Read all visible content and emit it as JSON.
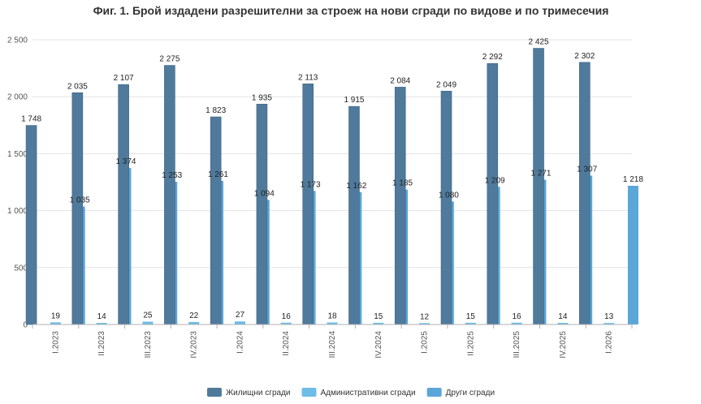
{
  "chart_data": {
    "type": "bar",
    "title": "Фиг. 1. Брой издадени разрешителни за строеж на нови сгради по видове и по тримесечия",
    "categories": [
      "I.2023",
      "II.2023",
      "III.2023",
      "IV.2023",
      "I.2024",
      "II.2024",
      "III.2024",
      "IV.2024",
      "I.2025",
      "II.2025",
      "III.2025",
      "IV.2025",
      "I.2026"
    ],
    "ylim": [
      0,
      2500
    ],
    "yticks": [
      0,
      500,
      1000,
      1500,
      2000,
      2500
    ],
    "ytick_labels": [
      "0",
      "500",
      "1 000",
      "1 500",
      "2 000",
      "2 500"
    ],
    "grid": true,
    "legend_position": "bottom",
    "series": [
      {
        "name": "Жилищни сгради",
        "color": "#4f7a9c",
        "values": [
          1748,
          2035,
          2107,
          2275,
          1823,
          1935,
          2113,
          1915,
          2084,
          2049,
          2292,
          2425,
          2302
        ],
        "labels": [
          "1 748",
          "2 035",
          "2 107",
          "2 275",
          "1 823",
          "1 935",
          "2 113",
          "1 915",
          "2 084",
          "2 049",
          "2 292",
          "2 425",
          "2 302"
        ]
      },
      {
        "name": "Административни сгради",
        "color": "#6dbde6",
        "values": [
          19,
          14,
          25,
          22,
          27,
          16,
          18,
          15,
          12,
          15,
          16,
          14,
          13
        ],
        "labels": [
          "19",
          "14",
          "25",
          "22",
          "27",
          "16",
          "18",
          "15",
          "12",
          "15",
          "16",
          "14",
          "13"
        ]
      },
      {
        "name": "Други сгради",
        "color": "#5ba6d9",
        "values": [
          1035,
          1374,
          1253,
          1261,
          1094,
          1173,
          1162,
          1185,
          1080,
          1209,
          1271,
          1307,
          1218
        ],
        "labels": [
          "1 035",
          "1 374",
          "1 253",
          "1 261",
          "1 094",
          "1 173",
          "1 162",
          "1 185",
          "1 080",
          "1 209",
          "1 271",
          "1 307",
          "1 218"
        ]
      }
    ]
  }
}
